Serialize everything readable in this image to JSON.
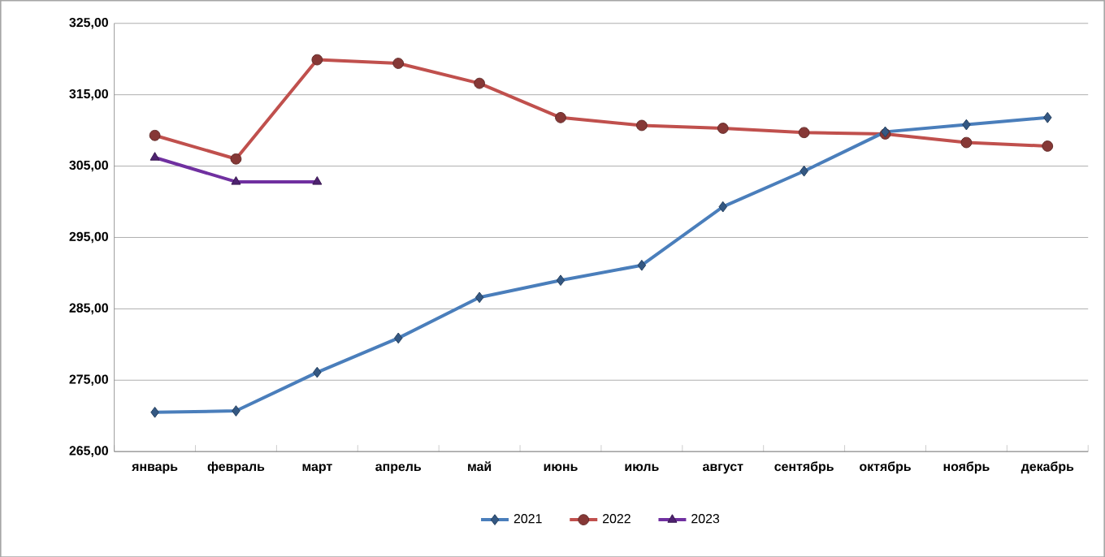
{
  "chart_data": {
    "type": "line",
    "categories": [
      "январь",
      "февраль",
      "март",
      "апрель",
      "май",
      "июнь",
      "июль",
      "август",
      "сентябрь",
      "октябрь",
      "ноябрь",
      "декабрь"
    ],
    "series": [
      {
        "name": "2021",
        "color": "#4a7ebb",
        "marker": "diamond",
        "values": [
          270.5,
          270.7,
          276.1,
          280.9,
          286.6,
          289.0,
          291.1,
          299.3,
          304.3,
          309.8,
          310.8,
          311.8
        ]
      },
      {
        "name": "2022",
        "color": "#c0504d",
        "marker": "circle",
        "values": [
          309.3,
          306.0,
          319.9,
          319.4,
          316.6,
          311.8,
          310.7,
          310.3,
          309.7,
          309.5,
          308.3,
          307.8
        ]
      },
      {
        "name": "2023",
        "color": "#7030a0",
        "marker": "triangle",
        "values": [
          306.2,
          302.8,
          302.8,
          null,
          null,
          null,
          null,
          null,
          null,
          null,
          null,
          null
        ]
      }
    ],
    "ylim": [
      265,
      325
    ],
    "yticks": [
      {
        "value": 265,
        "label": "265,00"
      },
      {
        "value": 275,
        "label": "275,00"
      },
      {
        "value": 285,
        "label": "285,00"
      },
      {
        "value": 295,
        "label": "295,00"
      },
      {
        "value": 305,
        "label": "305,00"
      },
      {
        "value": 315,
        "label": "315,00"
      },
      {
        "value": 325,
        "label": "325,00"
      }
    ],
    "grid": "y",
    "legend": "bottom",
    "line_style": "solid"
  }
}
